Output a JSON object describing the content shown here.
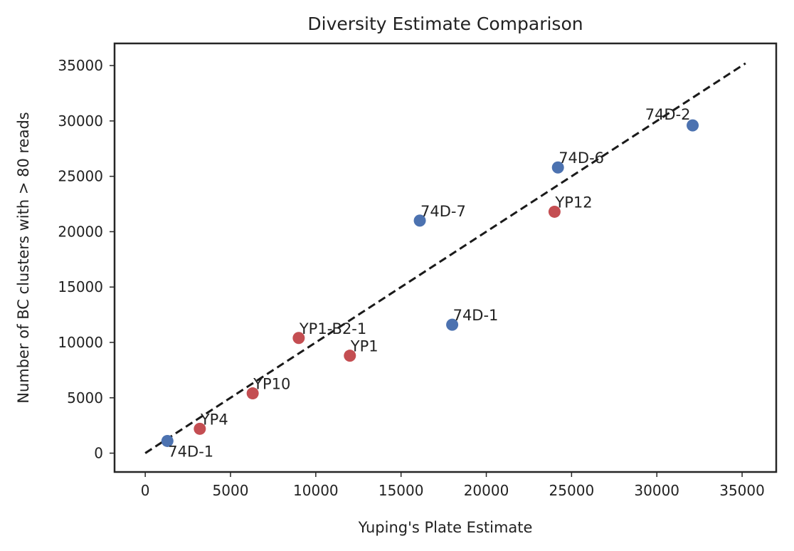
{
  "chart_data": {
    "type": "scatter",
    "title": "Diversity Estimate Comparison",
    "xlabel": "Yuping's Plate Estimate",
    "ylabel": "Number of BC clusters with > 80 reads",
    "xlim": [
      -1800,
      37000
    ],
    "ylim": [
      -1700,
      37000
    ],
    "xticks": [
      0,
      5000,
      10000,
      15000,
      20000,
      25000,
      30000,
      35000
    ],
    "yticks": [
      0,
      5000,
      10000,
      15000,
      20000,
      25000,
      30000,
      35000
    ],
    "grid": false,
    "reference_line": {
      "style": "dashed",
      "color": "#1a1a1a",
      "from": [
        0,
        0
      ],
      "to": [
        35200,
        35200
      ]
    },
    "series": [
      {
        "color": "#4c72b0",
        "points": [
          {
            "x": 1300,
            "y": 1100,
            "label": "74D-1",
            "label_pos": "below-right"
          },
          {
            "x": 16100,
            "y": 21000,
            "label": "74D-7",
            "label_pos": "above-right"
          },
          {
            "x": 18000,
            "y": 11600,
            "label": "74D-1",
            "label_pos": "above-right"
          },
          {
            "x": 24200,
            "y": 25800,
            "label": "74D-6",
            "label_pos": "above-right"
          },
          {
            "x": 32100,
            "y": 29600,
            "label": "74D-2",
            "label_pos": "above-left"
          }
        ]
      },
      {
        "color": "#c44e52",
        "points": [
          {
            "x": 3200,
            "y": 2200,
            "label": "YP4",
            "label_pos": "above-right"
          },
          {
            "x": 6300,
            "y": 5400,
            "label": "YP10",
            "label_pos": "above-right"
          },
          {
            "x": 9000,
            "y": 10400,
            "label": "YP1-B2-1",
            "label_pos": "above-right"
          },
          {
            "x": 12000,
            "y": 8800,
            "label": "YP1",
            "label_pos": "above-right"
          },
          {
            "x": 24000,
            "y": 21800,
            "label": "YP12",
            "label_pos": "above-right"
          }
        ]
      }
    ]
  }
}
